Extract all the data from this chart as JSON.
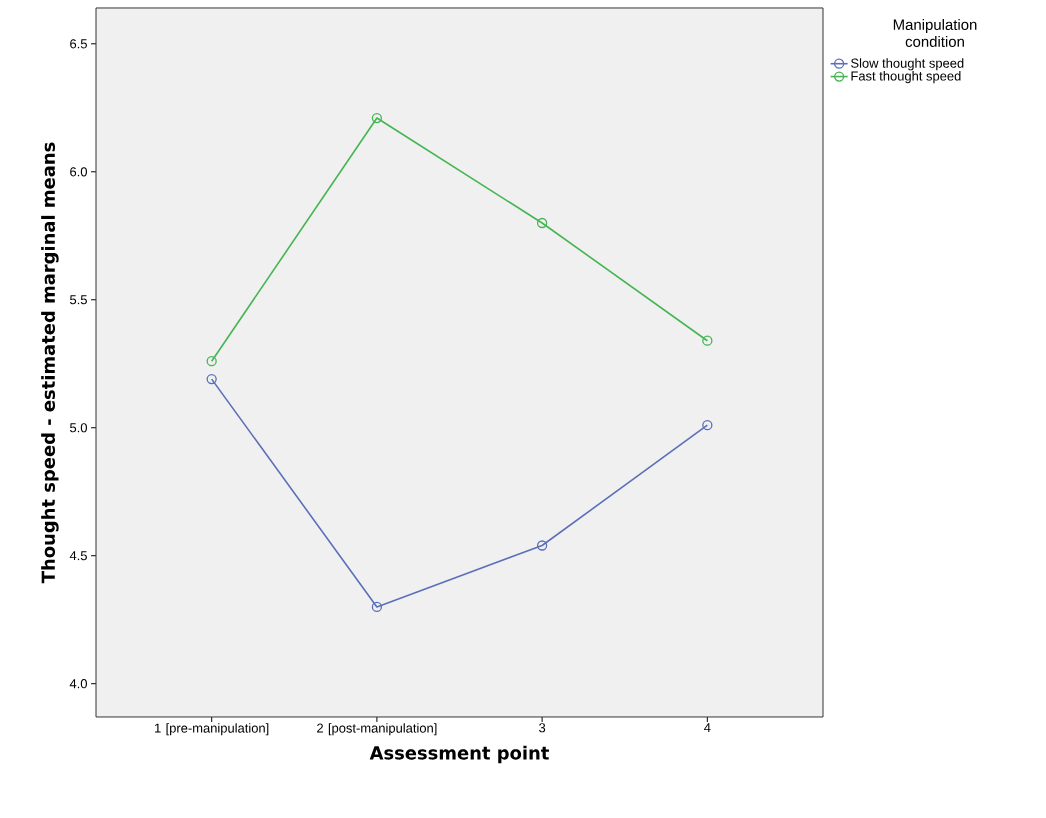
{
  "chart_data": {
    "type": "line",
    "xlabel": "Assessment point",
    "ylabel": "Thought speed - estimated marginal means",
    "legend_title": "Manipulation condition",
    "categories": [
      "1 [pre-manipulation]",
      "2 [post-manipulation]",
      "3",
      "4"
    ],
    "series": [
      {
        "name": "Slow thought speed",
        "color": "#5b6fba",
        "values": [
          5.19,
          4.3,
          4.54,
          5.01
        ]
      },
      {
        "name": "Fast thought speed",
        "color": "#44b553",
        "values": [
          5.26,
          6.21,
          5.8,
          5.34
        ]
      }
    ],
    "ylim": [
      3.87,
      6.64
    ],
    "yticks": [
      {
        "value": 4,
        "label": "4.0"
      },
      4.5,
      {
        "value": 5,
        "label": "5.0"
      },
      5.5,
      {
        "value": 6,
        "label": "6.0"
      },
      6.5
    ],
    "marker": "circle",
    "line_style": "solid",
    "grid": false,
    "legend": "right"
  }
}
